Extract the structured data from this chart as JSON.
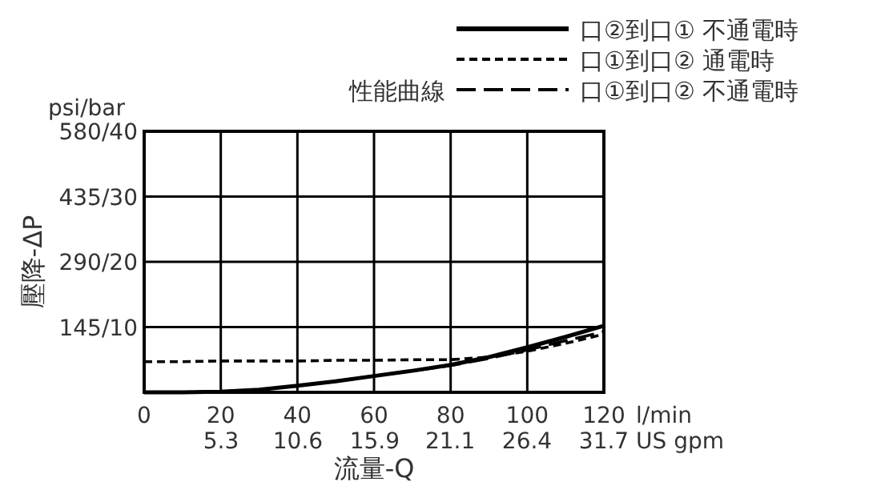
{
  "chart_data": {
    "type": "line",
    "xlabel": "流量-Q",
    "y2label": "壓降-ΔP",
    "legend_title": "性能曲線",
    "legend": "top right",
    "grid": true,
    "x": [
      0,
      10,
      20,
      30,
      40,
      50,
      60,
      70,
      80,
      90,
      100,
      110,
      120
    ],
    "xlim": [
      0,
      120
    ],
    "ylim": [
      0,
      40
    ],
    "xticks": [
      0,
      20,
      40,
      60,
      80,
      100,
      120
    ],
    "x2lim": [
      0,
      31.7
    ],
    "x2ticks": [
      5.3,
      10.6,
      15.9,
      21.1,
      26.4,
      31.7
    ],
    "yticks": [
      10,
      20,
      30,
      40
    ],
    "y2lim": [
      0,
      580
    ],
    "y2ticks": [
      {
        "value": 145,
        "label": "145/"
      },
      {
        "value": 290,
        "label": "290/"
      },
      {
        "value": 435,
        "label": "435/"
      },
      {
        "value": 580,
        "label": "580/"
      }
    ],
    "annotations": [
      "psi/bar",
      "l/min",
      "US gpm"
    ],
    "series": [
      {
        "name": "口②到口① 不通電時",
        "color": "#000000",
        "line_style": "solid",
        "values": [
          0,
          0,
          0.1,
          0.4,
          1.0,
          1.7,
          2.5,
          3.3,
          4.2,
          5.4,
          6.9,
          8.5,
          10.2
        ]
      },
      {
        "name": "口①到口② 通電時",
        "color": "#000000",
        "line_style": "dotted",
        "values": [
          4.7,
          4.7,
          4.8,
          4.8,
          4.8,
          4.9,
          4.9,
          5.0,
          5.0,
          5.4,
          6.3,
          7.5,
          8.9
        ]
      },
      {
        "name": "口①到口② 不通電時",
        "color": "#000000",
        "line_style": "dashed",
        "values": [
          0,
          0,
          0.1,
          0.4,
          1.0,
          1.7,
          2.5,
          3.3,
          4.1,
          5.2,
          6.5,
          7.9,
          9.3
        ]
      }
    ]
  }
}
